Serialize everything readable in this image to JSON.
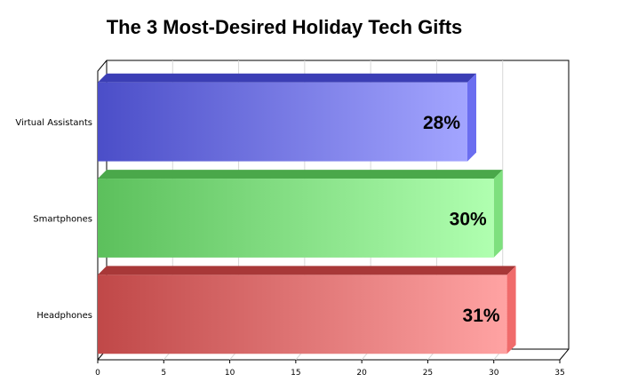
{
  "chart_data": {
    "type": "bar",
    "orientation": "horizontal",
    "title": "The 3 Most-Desired Holiday Tech Gifts",
    "categories": [
      "Virtual Assistants",
      "Smartphones",
      "Headphones"
    ],
    "values": [
      28,
      30,
      31
    ],
    "value_labels": [
      "28%",
      "30%",
      "31%"
    ],
    "xlim": [
      0,
      35
    ],
    "xticks": [
      0,
      5,
      10,
      15,
      20,
      25,
      30,
      35
    ],
    "grid": true,
    "legend": "none",
    "bar_colors": [
      {
        "start": "#4b4ec8",
        "end": "#a3a5ff",
        "top": "#3b3eb5",
        "side": "#6b6ef0"
      },
      {
        "start": "#5cc05c",
        "end": "#b0ffb0",
        "top": "#4aa84a",
        "side": "#7ee07e"
      },
      {
        "start": "#c04848",
        "end": "#ffa3a3",
        "top": "#a83838",
        "side": "#f06b6b"
      }
    ]
  }
}
